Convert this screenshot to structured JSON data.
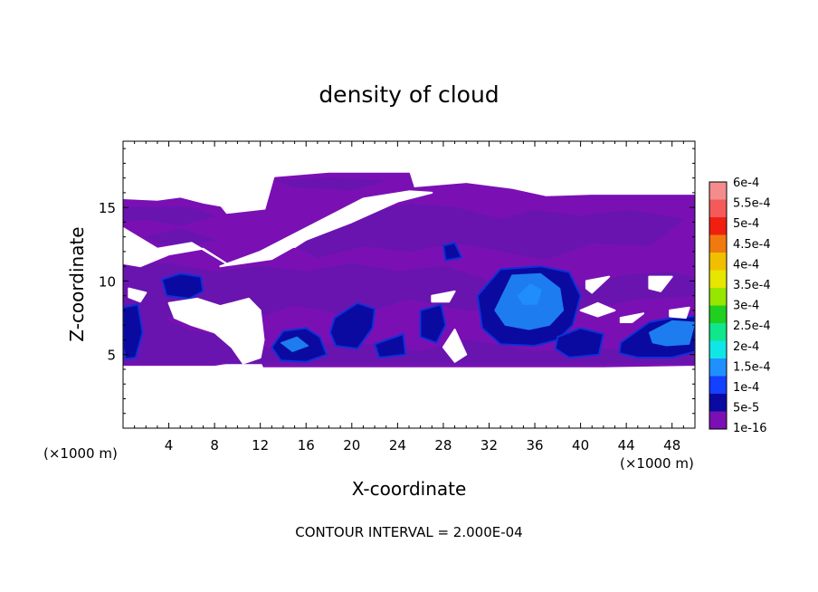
{
  "chart_data": {
    "type": "heatmap",
    "title": "density of cloud",
    "xlabel": "X-coordinate",
    "ylabel": "Z-coordinate",
    "x_unit_left": "(×1000 m)",
    "x_unit_right": "(×1000 m)",
    "footer": "CONTOUR INTERVAL = 2.000E-04",
    "xlim": [
      0,
      50
    ],
    "ylim": [
      0,
      19.5
    ],
    "x_ticks": [
      4,
      8,
      12,
      16,
      20,
      24,
      28,
      32,
      36,
      40,
      44,
      48
    ],
    "y_ticks": [
      5,
      10,
      15
    ],
    "colorbar": {
      "labels": [
        "6e-4",
        "5.5e-4",
        "5e-4",
        "4.5e-4",
        "4e-4",
        "3.5e-4",
        "3e-4",
        "2.5e-4",
        "2e-4",
        "1.5e-4",
        "1e-4",
        "5e-5",
        "1e-16"
      ],
      "colors": [
        "#f48c8c",
        "#f45a5a",
        "#f02010",
        "#f07a10",
        "#f0c000",
        "#e6e600",
        "#96e600",
        "#20d020",
        "#10e68c",
        "#10e6e6",
        "#2090ff",
        "#1440ff",
        "#0a0aa0",
        "#7a10b4"
      ]
    },
    "regions": {
      "envelope": [
        [
          0,
          15.5
        ],
        [
          3,
          15.4
        ],
        [
          5,
          15.6
        ],
        [
          7,
          15.2
        ],
        [
          8.5,
          15
        ],
        [
          9,
          14.5
        ],
        [
          12.5,
          14.8
        ],
        [
          13.3,
          17
        ],
        [
          18,
          17.3
        ],
        [
          25,
          17.3
        ],
        [
          25.4,
          16.3
        ],
        [
          30,
          16.6
        ],
        [
          34,
          16.2
        ],
        [
          37,
          15.7
        ],
        [
          41,
          15.8
        ],
        [
          50,
          15.8
        ],
        [
          50,
          4.3
        ],
        [
          42,
          4.2
        ],
        [
          32,
          4.2
        ],
        [
          24,
          4.2
        ],
        [
          12.3,
          4.2
        ],
        [
          12,
          4.8
        ],
        [
          8,
          4.3
        ],
        [
          0,
          4.3
        ]
      ],
      "holes": [
        [
          [
            0,
            13.6
          ],
          [
            3,
            12.2
          ],
          [
            6,
            12.6
          ],
          [
            9,
            11.2
          ],
          [
            7,
            12.2
          ],
          [
            4,
            11.8
          ],
          [
            1.5,
            11
          ],
          [
            0,
            11.2
          ]
        ],
        [
          [
            0.5,
            9.5
          ],
          [
            2,
            9.2
          ],
          [
            1.5,
            8.6
          ],
          [
            0.5,
            8.9
          ]
        ],
        [
          [
            4,
            8.5
          ],
          [
            6.5,
            8.8
          ],
          [
            8.5,
            8.3
          ],
          [
            11,
            8.8
          ],
          [
            12,
            8
          ],
          [
            12.3,
            6
          ],
          [
            12,
            4.8
          ],
          [
            10.5,
            4.4
          ],
          [
            9.5,
            5.5
          ],
          [
            8,
            6.5
          ],
          [
            6,
            7
          ],
          [
            4.5,
            7.5
          ]
        ],
        [
          [
            8.5,
            11
          ],
          [
            13,
            11.5
          ],
          [
            16,
            12.8
          ],
          [
            20,
            14
          ],
          [
            24,
            15.4
          ],
          [
            27,
            16
          ],
          [
            25,
            16.1
          ],
          [
            21,
            15.6
          ],
          [
            19,
            14.8
          ],
          [
            15,
            13.2
          ],
          [
            12,
            12
          ]
        ],
        [
          [
            13.5,
            12.6
          ],
          [
            16,
            12.8
          ],
          [
            15,
            12.3
          ],
          [
            13.5,
            12.3
          ]
        ],
        [
          [
            27,
            9
          ],
          [
            29,
            9.3
          ],
          [
            28.5,
            8.6
          ],
          [
            27,
            8.6
          ]
        ],
        [
          [
            28,
            5.5
          ],
          [
            29,
            6.7
          ],
          [
            30,
            5
          ],
          [
            29,
            4.5
          ]
        ],
        [
          [
            40.5,
            10
          ],
          [
            42.5,
            10.3
          ],
          [
            41,
            9.2
          ],
          [
            40.5,
            9.5
          ]
        ],
        [
          [
            46,
            10.3
          ],
          [
            48,
            10.3
          ],
          [
            47,
            9.3
          ],
          [
            46,
            9.5
          ]
        ],
        [
          [
            40,
            8
          ],
          [
            41.5,
            8.5
          ],
          [
            43,
            8
          ],
          [
            41.5,
            7.6
          ]
        ],
        [
          [
            43.5,
            7.5
          ],
          [
            45.5,
            7.8
          ],
          [
            44.5,
            7.2
          ],
          [
            43.5,
            7.2
          ]
        ],
        [
          [
            47.8,
            8
          ],
          [
            49.5,
            8.2
          ],
          [
            49.2,
            7.5
          ],
          [
            47.8,
            7.6
          ]
        ]
      ],
      "level_mid": [
        [
          [
            0,
            15
          ],
          [
            6,
            15
          ],
          [
            8,
            14.4
          ],
          [
            5,
            13.8
          ],
          [
            2,
            14.2
          ],
          [
            0,
            14
          ]
        ],
        [
          [
            2,
            13
          ],
          [
            5,
            13.5
          ],
          [
            8,
            12.8
          ],
          [
            6,
            12.4
          ],
          [
            3,
            12.6
          ]
        ],
        [
          [
            13.5,
            16.8
          ],
          [
            18,
            17
          ],
          [
            23,
            16.8
          ],
          [
            20,
            16.2
          ],
          [
            15,
            16.4
          ]
        ],
        [
          [
            14,
            12.8
          ],
          [
            20,
            14.5
          ],
          [
            25,
            15.2
          ],
          [
            29,
            15
          ],
          [
            33,
            14.2
          ],
          [
            36,
            14.8
          ],
          [
            40,
            14.4
          ],
          [
            44,
            14.8
          ],
          [
            49,
            14.2
          ],
          [
            46,
            12.4
          ],
          [
            41,
            12.6
          ],
          [
            37,
            11.5
          ],
          [
            32,
            12.2
          ],
          [
            29,
            12.6
          ],
          [
            25,
            12
          ],
          [
            21,
            12.4
          ],
          [
            17,
            11.6
          ]
        ],
        [
          [
            0,
            11
          ],
          [
            4,
            11.2
          ],
          [
            8,
            10.6
          ],
          [
            12,
            11
          ],
          [
            16,
            10.6
          ],
          [
            20,
            11.2
          ],
          [
            24,
            10.6
          ],
          [
            28,
            11
          ],
          [
            32,
            10
          ],
          [
            36,
            10.4
          ],
          [
            40,
            9.6
          ],
          [
            44,
            10.4
          ],
          [
            48,
            10.6
          ],
          [
            50,
            10.2
          ],
          [
            50,
            9
          ],
          [
            45,
            8.8
          ],
          [
            40,
            8
          ],
          [
            35,
            8.4
          ],
          [
            30,
            8
          ],
          [
            25,
            8.8
          ],
          [
            20,
            7.6
          ],
          [
            15,
            8.4
          ],
          [
            10,
            7
          ],
          [
            5,
            7.6
          ],
          [
            0,
            7.2
          ]
        ],
        [
          [
            0,
            8.4
          ],
          [
            3,
            7.6
          ],
          [
            6,
            6.6
          ],
          [
            9,
            6.2
          ],
          [
            12,
            5.4
          ],
          [
            20,
            5.8
          ],
          [
            26,
            5.2
          ],
          [
            30,
            6
          ],
          [
            36,
            5.2
          ],
          [
            42,
            5.4
          ],
          [
            48,
            5
          ],
          [
            50,
            5
          ],
          [
            50,
            4.4
          ],
          [
            0,
            4.4
          ]
        ]
      ],
      "level_blue": [
        [
          [
            0,
            8.2
          ],
          [
            1.3,
            8.4
          ],
          [
            1.7,
            6.5
          ],
          [
            1.1,
            4.8
          ],
          [
            0.2,
            4.7
          ],
          [
            0,
            5.5
          ]
        ],
        [
          [
            3.4,
            10.1
          ],
          [
            5,
            10.5
          ],
          [
            6.8,
            10.3
          ],
          [
            7,
            9.3
          ],
          [
            5.8,
            8.8
          ],
          [
            3.8,
            9
          ]
        ],
        [
          [
            13,
            5.5
          ],
          [
            14,
            6.6
          ],
          [
            16,
            6.8
          ],
          [
            17.2,
            6.2
          ],
          [
            17.8,
            5
          ],
          [
            16,
            4.5
          ],
          [
            13.8,
            4.6
          ]
        ],
        [
          [
            18.5,
            7.5
          ],
          [
            20.5,
            8.5
          ],
          [
            22,
            8.1
          ],
          [
            21.8,
            6.8
          ],
          [
            20.5,
            5.4
          ],
          [
            18.6,
            5.6
          ],
          [
            18.1,
            6.5
          ]
        ],
        [
          [
            26,
            8
          ],
          [
            27.8,
            8.4
          ],
          [
            28.2,
            7
          ],
          [
            27.4,
            5.8
          ],
          [
            26,
            6.2
          ]
        ],
        [
          [
            31,
            9
          ],
          [
            33,
            10.8
          ],
          [
            36.5,
            11
          ],
          [
            39,
            10.6
          ],
          [
            40,
            9
          ],
          [
            39.3,
            7
          ],
          [
            38,
            6
          ],
          [
            36,
            5.6
          ],
          [
            33,
            5.7
          ],
          [
            31.4,
            6.8
          ]
        ],
        [
          [
            28,
            12.4
          ],
          [
            29,
            12.6
          ],
          [
            29.6,
            11.6
          ],
          [
            28.2,
            11.4
          ]
        ],
        [
          [
            38,
            6.2
          ],
          [
            40,
            6.8
          ],
          [
            42,
            6.4
          ],
          [
            41.6,
            5
          ],
          [
            39,
            4.8
          ],
          [
            37.8,
            5.4
          ]
        ],
        [
          [
            43.5,
            5.8
          ],
          [
            46,
            7.2
          ],
          [
            48,
            7.5
          ],
          [
            50,
            7.6
          ],
          [
            50,
            5.2
          ],
          [
            48,
            4.8
          ],
          [
            45,
            4.8
          ],
          [
            43.4,
            5.1
          ]
        ],
        [
          [
            22,
            5.7
          ],
          [
            24.5,
            6.4
          ],
          [
            24.7,
            5
          ],
          [
            22.4,
            4.8
          ]
        ]
      ],
      "level_bright": [
        [
          [
            32.5,
            8
          ],
          [
            34,
            10.4
          ],
          [
            36.5,
            10.5
          ],
          [
            38.2,
            9.5
          ],
          [
            38.5,
            8
          ],
          [
            37.3,
            7
          ],
          [
            35.5,
            6.7
          ],
          [
            33.4,
            7
          ]
        ],
        [
          [
            46,
            6.5
          ],
          [
            48,
            7.3
          ],
          [
            50,
            7.2
          ],
          [
            49.5,
            5.7
          ],
          [
            47.5,
            5.6
          ],
          [
            46.3,
            5.8
          ]
        ],
        [
          [
            13.8,
            5.8
          ],
          [
            15.2,
            6.2
          ],
          [
            16.2,
            5.6
          ],
          [
            14.8,
            5.2
          ]
        ],
        [
          [
            34.5,
            9
          ],
          [
            35.6,
            9.8
          ],
          [
            36.6,
            9.4
          ],
          [
            36.2,
            8.4
          ],
          [
            35,
            8.4
          ]
        ]
      ]
    },
    "legend": "right"
  }
}
